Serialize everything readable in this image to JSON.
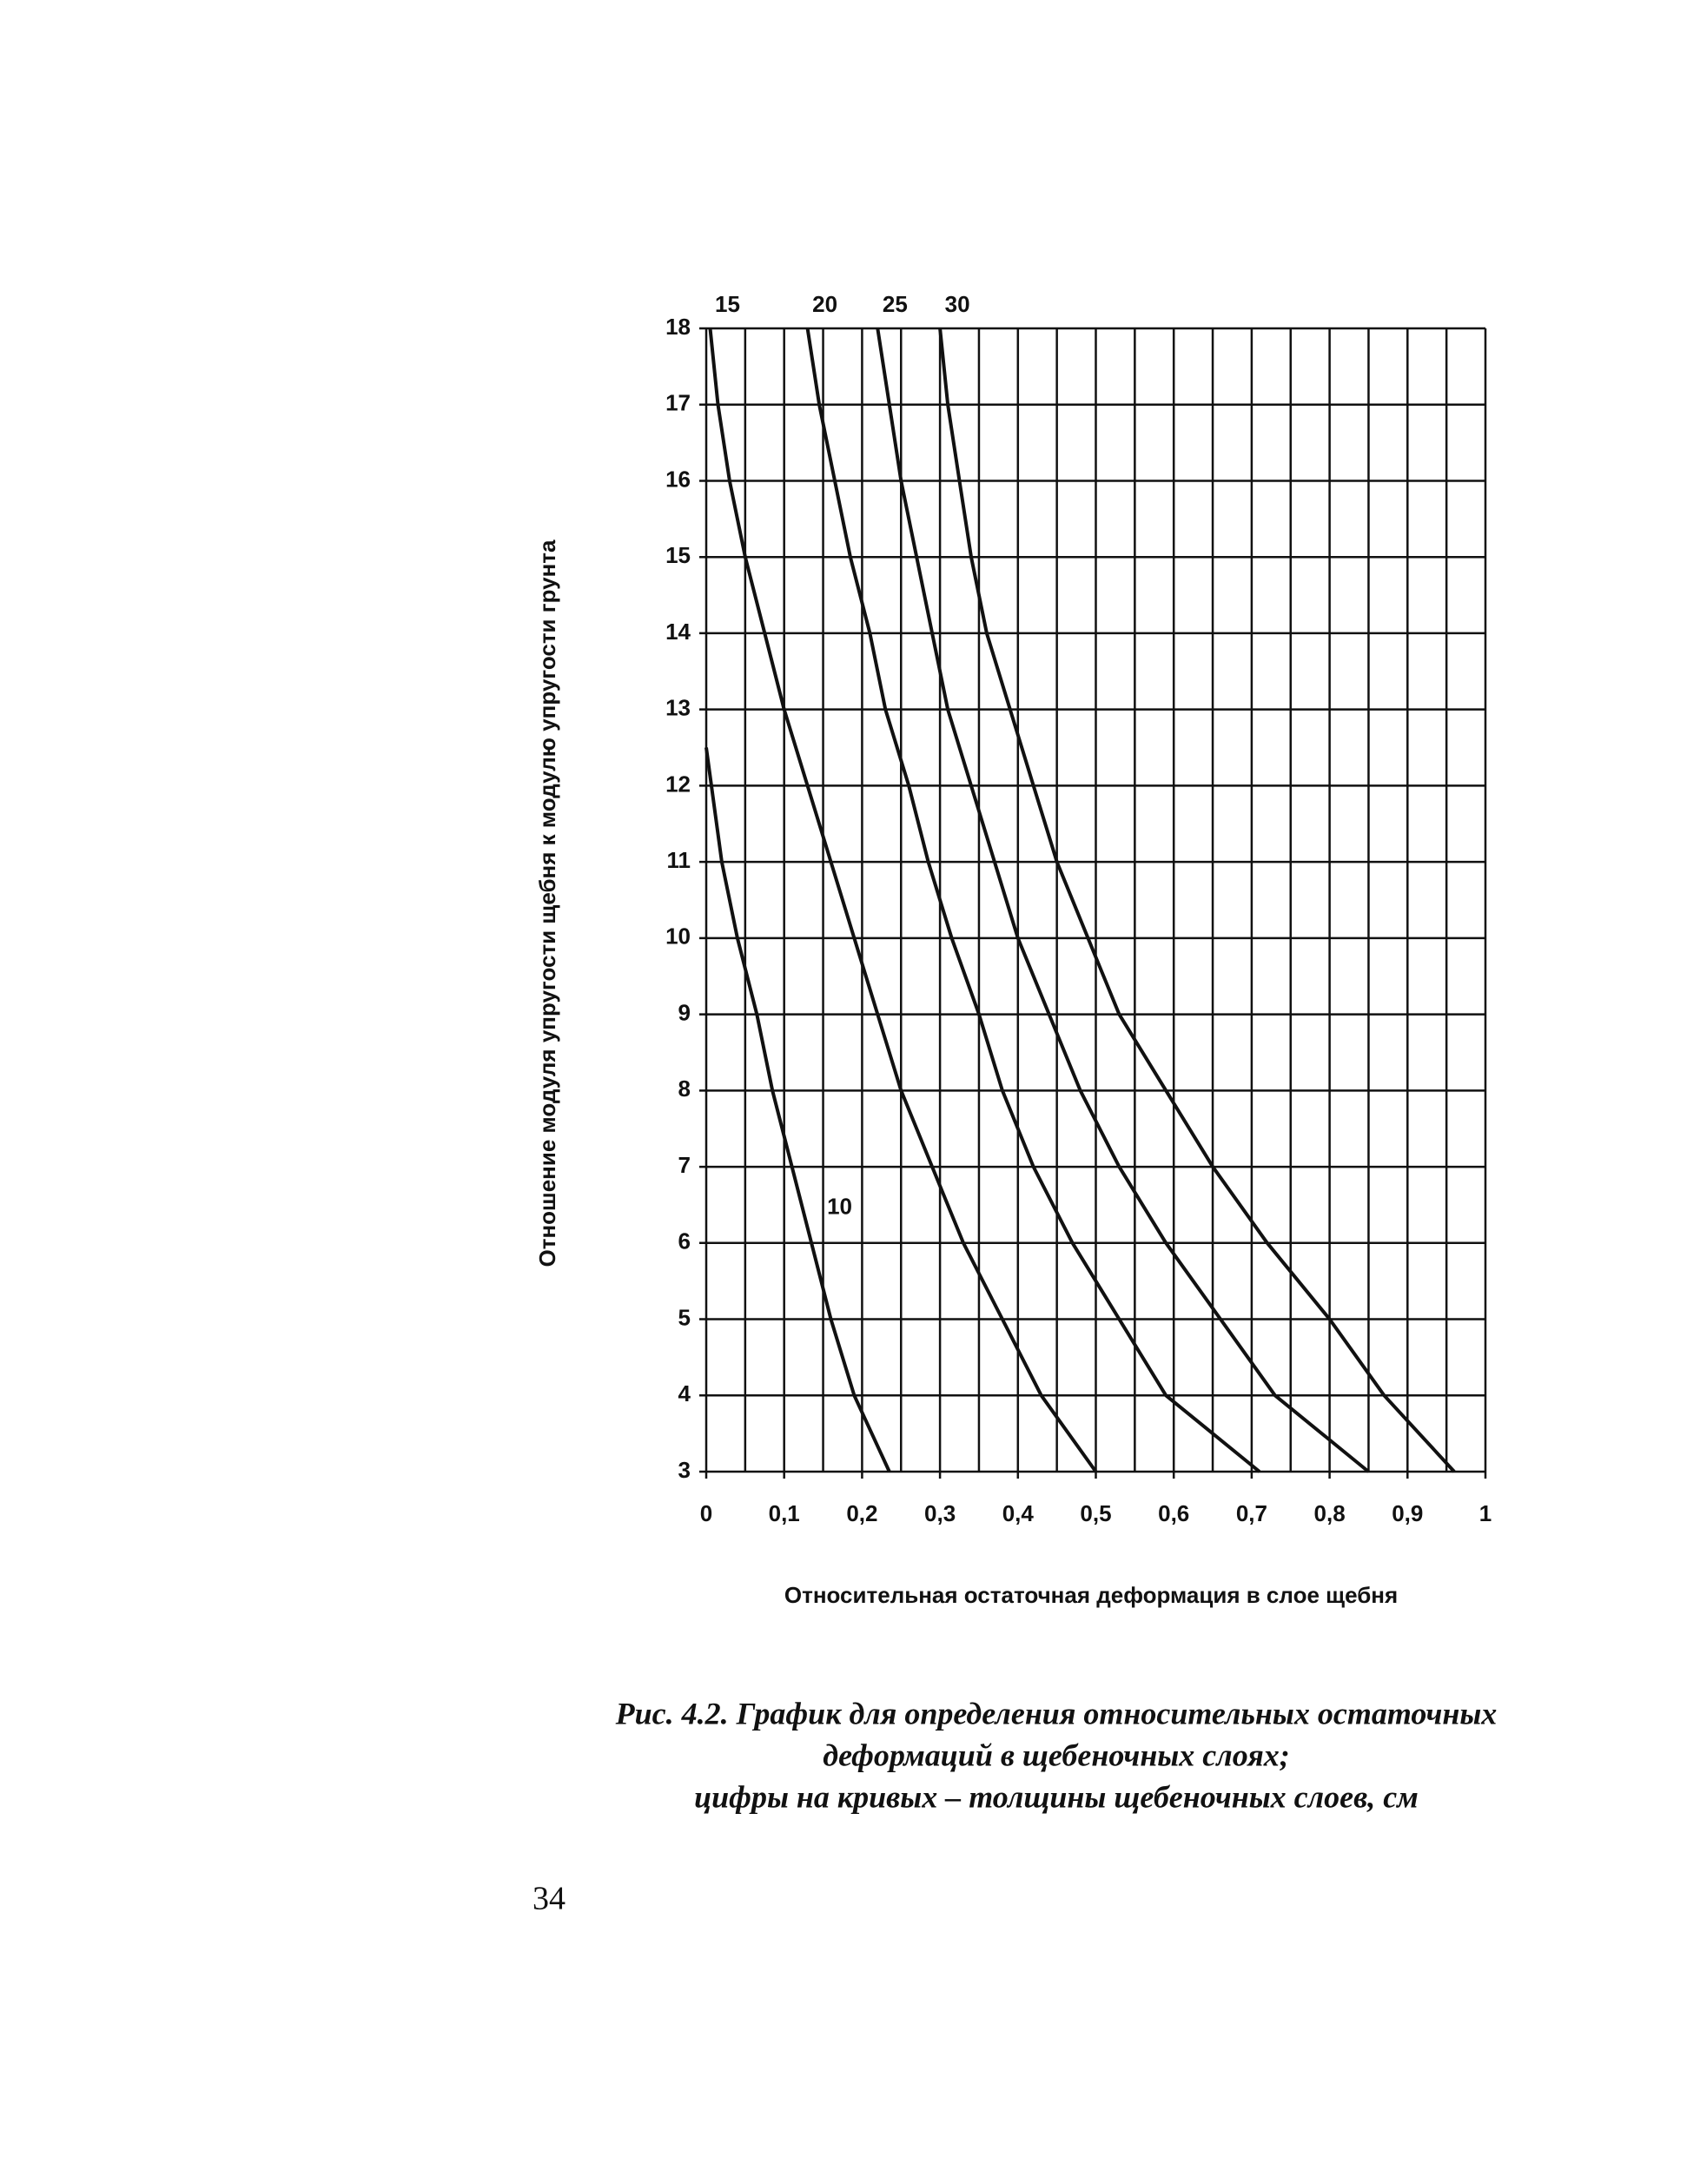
{
  "chart_data": {
    "type": "line",
    "xlabel": "Относительная остаточная деформация в слое щебня",
    "ylabel": "Отношение модуля упругости щебня к модулю упругости грунта",
    "xlim": [
      0,
      1
    ],
    "ylim": [
      3,
      18
    ],
    "xticks": [
      0,
      {
        "value": 0.1,
        "label": "0,1"
      },
      {
        "value": 0.2,
        "label": "0,2"
      },
      {
        "value": 0.3,
        "label": "0,3"
      },
      {
        "value": 0.4,
        "label": "0,4"
      },
      {
        "value": 0.5,
        "label": "0,5"
      },
      {
        "value": 0.6,
        "label": "0,6"
      },
      {
        "value": 0.7,
        "label": "0,7"
      },
      {
        "value": 0.8,
        "label": "0,8"
      },
      {
        "value": 0.9,
        "label": "0,9"
      },
      1
    ],
    "xminorticks": [
      0.05,
      0.15,
      0.25,
      0.35,
      0.45,
      0.55,
      0.65,
      0.75,
      0.85,
      0.95
    ],
    "yticks": [
      3,
      4,
      5,
      6,
      7,
      8,
      9,
      10,
      11,
      12,
      13,
      14,
      15,
      16,
      17,
      18
    ],
    "grid": true,
    "series": [
      {
        "name": "10",
        "color": "#111111",
        "x": [
          0,
          0.02,
          0.04,
          0.065,
          0.085,
          0.11,
          0.135,
          0.16,
          0.19,
          0.235
        ],
        "values": [
          12.5,
          11,
          10,
          9,
          8,
          7,
          6,
          5,
          4,
          3
        ]
      },
      {
        "name": "15",
        "color": "#111111",
        "x": [
          0.005,
          0.015,
          0.03,
          0.05,
          0.075,
          0.1,
          0.13,
          0.16,
          0.19,
          0.22,
          0.25,
          0.29,
          0.33,
          0.38,
          0.43,
          0.5
        ],
        "values": [
          18,
          17,
          16,
          15,
          14,
          13,
          12,
          11,
          10,
          9,
          8,
          7,
          6,
          5,
          4,
          3
        ]
      },
      {
        "name": "20",
        "color": "#111111",
        "x": [
          0.13,
          0.145,
          0.165,
          0.185,
          0.21,
          0.23,
          0.26,
          0.285,
          0.315,
          0.35,
          0.38,
          0.42,
          0.47,
          0.53,
          0.59,
          0.71
        ],
        "values": [
          18,
          17,
          16,
          15,
          14,
          13,
          12,
          11,
          10,
          9,
          8,
          7,
          6,
          5,
          4,
          3
        ]
      },
      {
        "name": "25",
        "color": "#111111",
        "x": [
          0.22,
          0.235,
          0.25,
          0.27,
          0.29,
          0.31,
          0.34,
          0.37,
          0.4,
          0.44,
          0.48,
          0.53,
          0.59,
          0.66,
          0.73,
          0.85
        ],
        "values": [
          18,
          17,
          16,
          15,
          14,
          13,
          12,
          11,
          10,
          9,
          8,
          7,
          6,
          5,
          4,
          3
        ]
      },
      {
        "name": "30",
        "color": "#111111",
        "x": [
          0.3,
          0.31,
          0.325,
          0.34,
          0.36,
          0.39,
          0.42,
          0.45,
          0.49,
          0.53,
          0.59,
          0.65,
          0.72,
          0.8,
          0.87,
          0.96
        ],
        "values": [
          18,
          17,
          16,
          15,
          14,
          13,
          12,
          11,
          10,
          9,
          8,
          7,
          6,
          5,
          4,
          3
        ]
      }
    ]
  },
  "caption": {
    "line1": "Рис. 4.2. График для определения относительных остаточных",
    "line2": "деформаций в щебеночных слоях;",
    "line3": "цифры на кривых – толщины щебеночных слоев, см"
  },
  "page_number": "34"
}
